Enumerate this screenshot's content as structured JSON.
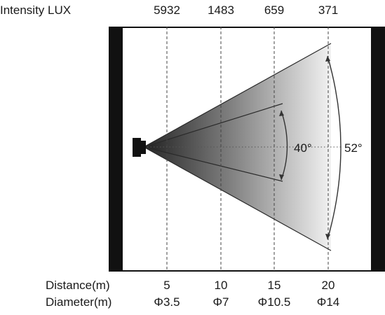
{
  "header": {
    "intensity_label": "Intensity LUX"
  },
  "intensity_values": [
    "5932",
    "1483",
    "659",
    "371"
  ],
  "distances": [
    "5",
    "10",
    "15",
    "20"
  ],
  "diameters": [
    "Φ3.5",
    "Φ7",
    "Φ10.5",
    "Φ14"
  ],
  "rows": {
    "distance_label": "Distance(m)",
    "diameter_label": "Diameter(m)"
  },
  "angles": {
    "inner": "40°",
    "outer": "52°"
  }
}
